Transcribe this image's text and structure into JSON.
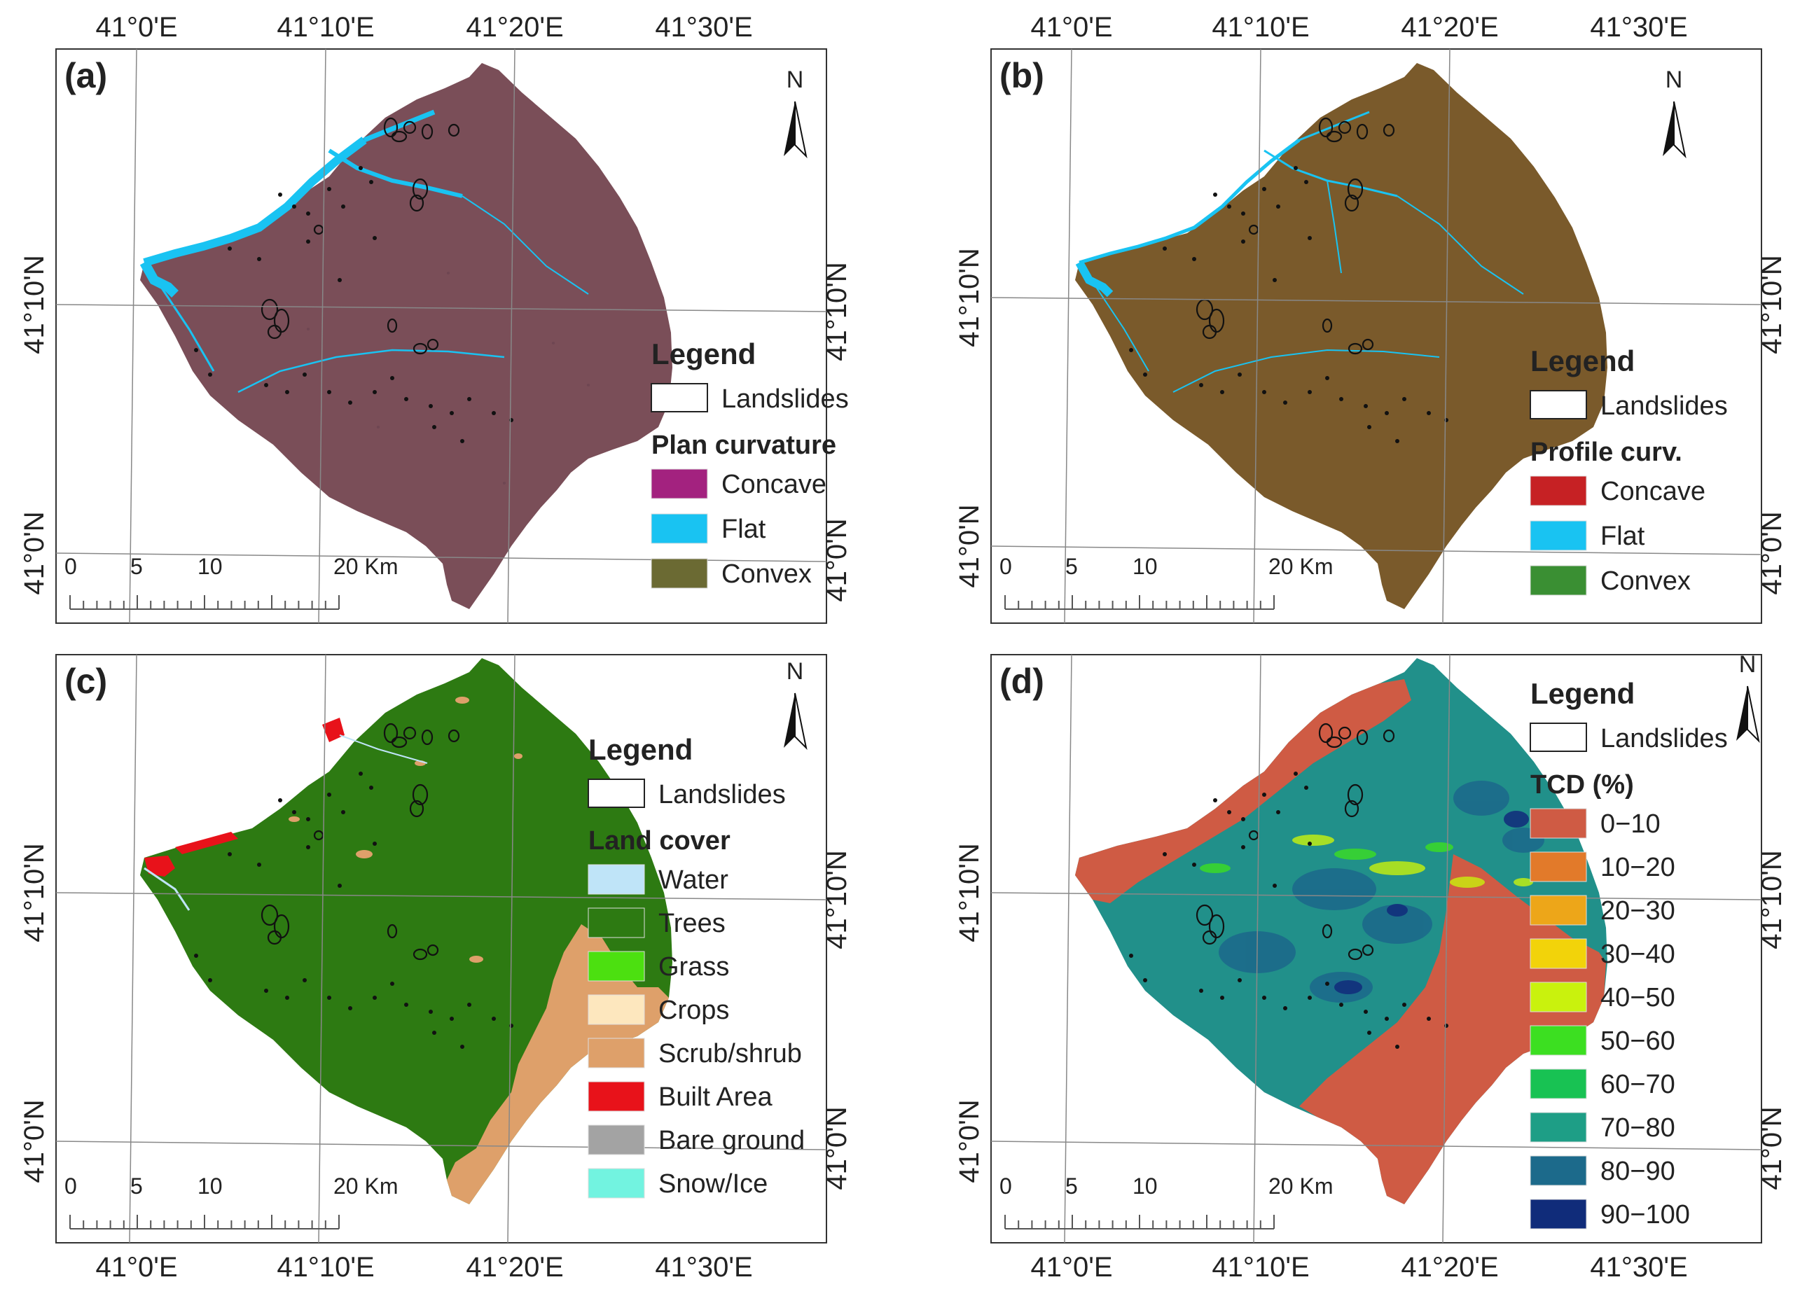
{
  "panels": [
    {
      "id": "a",
      "label": "(a)",
      "top_labels": [
        "41°0'E",
        "41°10'E",
        "41°20'E",
        "41°30'E"
      ],
      "left_labels": [
        "41°10'N",
        "41°0'N"
      ],
      "right_labels": [
        "41°10'N",
        "41°0'N"
      ],
      "north": "N",
      "scale": {
        "ticks": [
          "0",
          "5",
          "10",
          "20 Km"
        ]
      },
      "legend": {
        "title": "Legend",
        "landslides": "Landslides",
        "subtitle": "Plan curvature",
        "items": [
          {
            "label": "Concave",
            "color": "#A3227F"
          },
          {
            "label": "Flat",
            "color": "#19C3F2"
          },
          {
            "label": "Convex",
            "color": "#6B6A33"
          }
        ]
      },
      "map_fill": "#7A4E58"
    },
    {
      "id": "b",
      "label": "(b)",
      "top_labels": [
        "41°0'E",
        "41°10'E",
        "41°20'E",
        "41°30'E"
      ],
      "left_labels": [
        "41°10'N",
        "41°0'N"
      ],
      "right_labels": [
        "41°10'N",
        "41°0'N"
      ],
      "north": "N",
      "scale": {
        "ticks": [
          "0",
          "5",
          "10",
          "20 Km"
        ]
      },
      "legend": {
        "title": "Legend",
        "landslides": "Landslides",
        "subtitle": "Profile curv.",
        "items": [
          {
            "label": "Concave",
            "color": "#C62124"
          },
          {
            "label": "Flat",
            "color": "#19C3F2"
          },
          {
            "label": "Convex",
            "color": "#3A8F33"
          }
        ]
      },
      "map_fill": "#7A5A2B"
    },
    {
      "id": "c",
      "label": "(c)",
      "bottom_labels": [
        "41°0'E",
        "41°10'E",
        "41°20'E",
        "41°30'E"
      ],
      "left_labels": [
        "41°10'N",
        "41°0'N"
      ],
      "right_labels": [
        "41°10'N",
        "41°0'N"
      ],
      "north": "N",
      "scale": {
        "ticks": [
          "0",
          "5",
          "10",
          "20 Km"
        ]
      },
      "legend": {
        "title": "Legend",
        "landslides": "Landslides",
        "subtitle": "Land cover",
        "items": [
          {
            "label": "Water",
            "color": "#BFE4F8"
          },
          {
            "label": "Trees",
            "color": "#2D7A12"
          },
          {
            "label": "Grass",
            "color": "#4CE010"
          },
          {
            "label": "Crops",
            "color": "#FDE7BE"
          },
          {
            "label": "Scrub/shrub",
            "color": "#DEA06A"
          },
          {
            "label": "Built Area",
            "color": "#E8121A"
          },
          {
            "label": "Bare ground",
            "color": "#A3A3A3"
          },
          {
            "label": "Snow/Ice",
            "color": "#72F3E0"
          }
        ]
      },
      "map_fill": "#2D7A12"
    },
    {
      "id": "d",
      "label": "(d)",
      "bottom_labels": [
        "41°0'E",
        "41°10'E",
        "41°20'E",
        "41°30'E"
      ],
      "left_labels": [
        "41°10'N",
        "41°0'N"
      ],
      "right_labels": [
        "41°10'N",
        "41°0'N"
      ],
      "north": "N",
      "scale": {
        "ticks": [
          "0",
          "5",
          "10",
          "20 Km"
        ]
      },
      "legend": {
        "title": "Legend",
        "landslides": "Landslides",
        "subtitle": "TCD (%)",
        "items": [
          {
            "label": "0−10",
            "color": "#CF5B44"
          },
          {
            "label": "10−20",
            "color": "#E27A2A"
          },
          {
            "label": "20−30",
            "color": "#EDA619"
          },
          {
            "label": "30−40",
            "color": "#F2D30A"
          },
          {
            "label": "40−50",
            "color": "#C9F20D"
          },
          {
            "label": "50−60",
            "color": "#3CDF21"
          },
          {
            "label": "60−70",
            "color": "#18C253"
          },
          {
            "label": "70−80",
            "color": "#1E9E86"
          },
          {
            "label": "80−90",
            "color": "#1C6A8B"
          },
          {
            "label": "90−100",
            "color": "#102C7A"
          }
        ]
      },
      "map_fill": "#21908A"
    }
  ]
}
